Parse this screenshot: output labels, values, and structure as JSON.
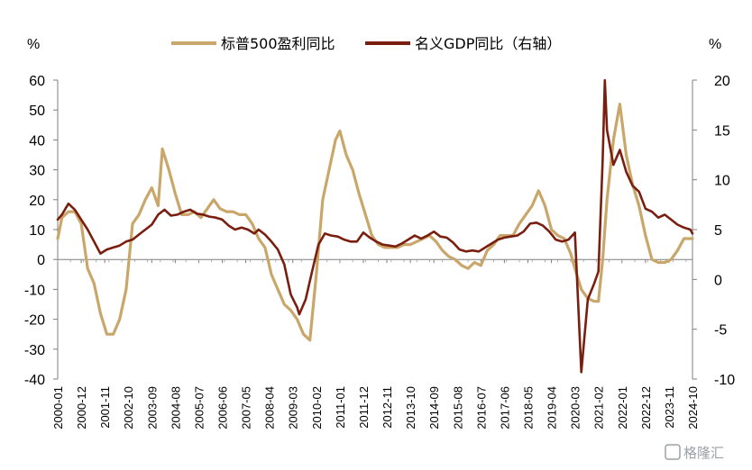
{
  "chart_data": {
    "type": "line",
    "title": "",
    "y_left_unit": "%",
    "y_right_unit": "%",
    "ylim_left": [
      -40,
      60
    ],
    "ylim_right": [
      -10,
      20
    ],
    "yticks_left": [
      "60",
      "50",
      "40",
      "30",
      "20",
      "10",
      "0",
      "-10",
      "-20",
      "-30",
      "-40"
    ],
    "yticks_right": [
      "20",
      "15",
      "10",
      "5",
      "0",
      "-5",
      "-10"
    ],
    "x_tick_labels": [
      "2000-01",
      "2000-12",
      "2001-11",
      "2002-10",
      "2003-09",
      "2004-08",
      "2005-07",
      "2006-06",
      "2007-05",
      "2008-04",
      "2009-03",
      "2010-02",
      "2011-01",
      "2011-12",
      "2012-11",
      "2013-10",
      "2014-09",
      "2015-08",
      "2016-07",
      "2017-06",
      "2018-05",
      "2019-04",
      "2020-03",
      "2021-02",
      "2022-01",
      "2022-12",
      "2023-11",
      "2024-10"
    ],
    "x_start": "2000-01",
    "x_end": "2024-10",
    "legend_position": "top",
    "grid": false,
    "series": [
      {
        "name": "标普500盈利同比",
        "axis": "left",
        "color": "#c9a76b",
        "points": [
          [
            "2000-01",
            7
          ],
          [
            "2000-03",
            14
          ],
          [
            "2000-06",
            16
          ],
          [
            "2000-09",
            16
          ],
          [
            "2000-12",
            12
          ],
          [
            "2001-03",
            -3
          ],
          [
            "2001-06",
            -8
          ],
          [
            "2001-09",
            -18
          ],
          [
            "2001-12",
            -25
          ],
          [
            "2002-03",
            -25
          ],
          [
            "2002-06",
            -20
          ],
          [
            "2002-09",
            -10
          ],
          [
            "2002-12",
            12
          ],
          [
            "2003-03",
            15
          ],
          [
            "2003-06",
            20
          ],
          [
            "2003-09",
            24
          ],
          [
            "2003-12",
            18
          ],
          [
            "2004-02",
            37
          ],
          [
            "2004-05",
            30
          ],
          [
            "2004-08",
            22
          ],
          [
            "2004-11",
            15
          ],
          [
            "2005-02",
            15
          ],
          [
            "2005-05",
            16
          ],
          [
            "2005-08",
            14
          ],
          [
            "2005-11",
            17
          ],
          [
            "2006-02",
            20
          ],
          [
            "2006-05",
            17
          ],
          [
            "2006-08",
            16
          ],
          [
            "2006-11",
            16
          ],
          [
            "2007-02",
            15
          ],
          [
            "2007-05",
            15
          ],
          [
            "2007-08",
            12
          ],
          [
            "2007-11",
            7
          ],
          [
            "2008-02",
            4
          ],
          [
            "2008-05",
            -5
          ],
          [
            "2008-08",
            -10
          ],
          [
            "2008-11",
            -15
          ],
          [
            "2009-02",
            -17
          ],
          [
            "2009-05",
            -20
          ],
          [
            "2009-08",
            -25
          ],
          [
            "2009-11",
            -27
          ],
          [
            "2010-02",
            -5
          ],
          [
            "2010-05",
            20
          ],
          [
            "2010-08",
            30
          ],
          [
            "2010-11",
            40
          ],
          [
            "2011-01",
            43
          ],
          [
            "2011-04",
            35
          ],
          [
            "2011-07",
            30
          ],
          [
            "2011-10",
            22
          ],
          [
            "2012-01",
            15
          ],
          [
            "2012-04",
            8
          ],
          [
            "2012-07",
            5
          ],
          [
            "2012-10",
            4
          ],
          [
            "2013-01",
            4
          ],
          [
            "2013-04",
            4
          ],
          [
            "2013-07",
            5
          ],
          [
            "2013-10",
            5
          ],
          [
            "2014-01",
            6
          ],
          [
            "2014-04",
            7
          ],
          [
            "2014-07",
            8
          ],
          [
            "2014-10",
            6
          ],
          [
            "2015-01",
            3
          ],
          [
            "2015-04",
            1
          ],
          [
            "2015-07",
            0
          ],
          [
            "2015-10",
            -2
          ],
          [
            "2016-01",
            -3
          ],
          [
            "2016-04",
            -1
          ],
          [
            "2016-07",
            -2
          ],
          [
            "2016-10",
            3
          ],
          [
            "2017-01",
            5
          ],
          [
            "2017-04",
            8
          ],
          [
            "2017-07",
            8
          ],
          [
            "2017-10",
            8
          ],
          [
            "2018-01",
            12
          ],
          [
            "2018-04",
            15
          ],
          [
            "2018-07",
            18
          ],
          [
            "2018-10",
            23
          ],
          [
            "2019-01",
            18
          ],
          [
            "2019-04",
            10
          ],
          [
            "2019-07",
            8
          ],
          [
            "2019-10",
            7
          ],
          [
            "2020-01",
            2
          ],
          [
            "2020-03",
            -3
          ],
          [
            "2020-06",
            -10
          ],
          [
            "2020-09",
            -13
          ],
          [
            "2020-12",
            -14
          ],
          [
            "2021-02",
            -14
          ],
          [
            "2021-04",
            0
          ],
          [
            "2021-06",
            20
          ],
          [
            "2021-09",
            40
          ],
          [
            "2021-12",
            52
          ],
          [
            "2022-03",
            35
          ],
          [
            "2022-06",
            25
          ],
          [
            "2022-09",
            18
          ],
          [
            "2022-12",
            8
          ],
          [
            "2023-03",
            0
          ],
          [
            "2023-06",
            -1
          ],
          [
            "2023-09",
            -1
          ],
          [
            "2023-12",
            0
          ],
          [
            "2024-03",
            3
          ],
          [
            "2024-06",
            7
          ],
          [
            "2024-10",
            7
          ]
        ]
      },
      {
        "name": "名义GDP同比（右轴）",
        "axis": "right",
        "color": "#7a1f0f",
        "points": [
          [
            "2000-01",
            6
          ],
          [
            "2000-03",
            6.5
          ],
          [
            "2000-06",
            7.6
          ],
          [
            "2000-09",
            7
          ],
          [
            "2000-12",
            6
          ],
          [
            "2001-03",
            5
          ],
          [
            "2001-06",
            3.8
          ],
          [
            "2001-09",
            2.6
          ],
          [
            "2001-12",
            3
          ],
          [
            "2002-03",
            3.2
          ],
          [
            "2002-06",
            3.4
          ],
          [
            "2002-09",
            3.8
          ],
          [
            "2002-12",
            4
          ],
          [
            "2003-03",
            4.5
          ],
          [
            "2003-06",
            5
          ],
          [
            "2003-09",
            5.5
          ],
          [
            "2003-12",
            6.5
          ],
          [
            "2004-03",
            7
          ],
          [
            "2004-06",
            6.4
          ],
          [
            "2004-09",
            6.5
          ],
          [
            "2004-12",
            6.8
          ],
          [
            "2005-03",
            7
          ],
          [
            "2005-06",
            6.6
          ],
          [
            "2005-09",
            6.5
          ],
          [
            "2005-12",
            6.3
          ],
          [
            "2006-03",
            6.2
          ],
          [
            "2006-06",
            6
          ],
          [
            "2006-09",
            5.4
          ],
          [
            "2006-12",
            5
          ],
          [
            "2007-03",
            5.2
          ],
          [
            "2007-06",
            5
          ],
          [
            "2007-09",
            4.6
          ],
          [
            "2007-11",
            5
          ],
          [
            "2008-02",
            4.5
          ],
          [
            "2008-05",
            3.8
          ],
          [
            "2008-08",
            3
          ],
          [
            "2008-11",
            1.5
          ],
          [
            "2009-02",
            -1.5
          ],
          [
            "2009-05",
            -2.8
          ],
          [
            "2009-06",
            -3.5
          ],
          [
            "2009-09",
            -2
          ],
          [
            "2009-12",
            0.8
          ],
          [
            "2010-03",
            3.5
          ],
          [
            "2010-06",
            4.6
          ],
          [
            "2010-09",
            4.4
          ],
          [
            "2010-12",
            4.3
          ],
          [
            "2011-03",
            4
          ],
          [
            "2011-06",
            3.8
          ],
          [
            "2011-09",
            3.8
          ],
          [
            "2011-12",
            4.7
          ],
          [
            "2012-03",
            4.2
          ],
          [
            "2012-06",
            3.8
          ],
          [
            "2012-09",
            3.5
          ],
          [
            "2012-12",
            3.4
          ],
          [
            "2013-03",
            3.3
          ],
          [
            "2013-06",
            3.6
          ],
          [
            "2013-09",
            4
          ],
          [
            "2013-12",
            4.4
          ],
          [
            "2014-03",
            4.1
          ],
          [
            "2014-06",
            4.4
          ],
          [
            "2014-09",
            4.8
          ],
          [
            "2014-12",
            4.3
          ],
          [
            "2015-03",
            4.2
          ],
          [
            "2015-06",
            3.7
          ],
          [
            "2015-09",
            3
          ],
          [
            "2015-12",
            2.8
          ],
          [
            "2016-03",
            2.9
          ],
          [
            "2016-06",
            2.8
          ],
          [
            "2016-09",
            3.2
          ],
          [
            "2016-12",
            3.6
          ],
          [
            "2017-03",
            4
          ],
          [
            "2017-06",
            4.2
          ],
          [
            "2017-09",
            4.3
          ],
          [
            "2017-12",
            4.4
          ],
          [
            "2018-03",
            4.8
          ],
          [
            "2018-06",
            5.6
          ],
          [
            "2018-09",
            5.7
          ],
          [
            "2018-12",
            5.4
          ],
          [
            "2019-03",
            4.8
          ],
          [
            "2019-06",
            4
          ],
          [
            "2019-09",
            3.8
          ],
          [
            "2019-12",
            4
          ],
          [
            "2020-03",
            4.7
          ],
          [
            "2020-04",
            0
          ],
          [
            "2020-06",
            -9.3
          ],
          [
            "2020-09",
            -2
          ],
          [
            "2020-12",
            -0.4
          ],
          [
            "2021-02",
            0.8
          ],
          [
            "2021-04",
            12
          ],
          [
            "2021-05",
            20
          ],
          [
            "2021-06",
            15
          ],
          [
            "2021-09",
            11.5
          ],
          [
            "2021-12",
            13
          ],
          [
            "2022-03",
            10.8
          ],
          [
            "2022-06",
            9.4
          ],
          [
            "2022-09",
            8.8
          ],
          [
            "2022-12",
            7.1
          ],
          [
            "2023-03",
            6.8
          ],
          [
            "2023-06",
            6.2
          ],
          [
            "2023-09",
            6.5
          ],
          [
            "2023-12",
            6
          ],
          [
            "2024-03",
            5.5
          ],
          [
            "2024-06",
            5.2
          ],
          [
            "2024-09",
            5
          ],
          [
            "2024-10",
            4.6
          ]
        ]
      }
    ]
  },
  "watermark": "格隆汇"
}
